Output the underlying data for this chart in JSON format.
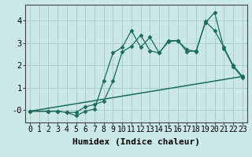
{
  "xlabel": "Humidex (Indice chaleur)",
  "background_color": "#cce8e6",
  "grid_color": "#aacfcd",
  "line_color": "#1a6b5e",
  "xlim": [
    -0.5,
    23.5
  ],
  "ylim": [
    -0.55,
    4.7
  ],
  "xticks": [
    0,
    1,
    2,
    3,
    4,
    5,
    6,
    7,
    8,
    9,
    10,
    11,
    12,
    13,
    14,
    15,
    16,
    17,
    18,
    19,
    20,
    21,
    22,
    23
  ],
  "yticks": [
    0,
    1,
    2,
    3,
    4
  ],
  "ytick_labels": [
    "-0",
    "1",
    "2",
    "3",
    "4"
  ],
  "line1_x": [
    0,
    2,
    3,
    4,
    5,
    6,
    7,
    8,
    9,
    10,
    11,
    12,
    13,
    14,
    15,
    16,
    17,
    18,
    19,
    20,
    21,
    22,
    23
  ],
  "line1_y": [
    -0.05,
    -0.05,
    -0.05,
    -0.1,
    -0.25,
    -0.05,
    0.05,
    1.3,
    2.55,
    2.8,
    3.55,
    2.8,
    3.25,
    2.55,
    3.05,
    3.1,
    2.7,
    2.6,
    3.95,
    3.55,
    2.8,
    2.0,
    1.5
  ],
  "line2_x": [
    0,
    2,
    3,
    4,
    5,
    6,
    7,
    8,
    9,
    10,
    11,
    12,
    13,
    14,
    15,
    16,
    17,
    18,
    19,
    20,
    21,
    22,
    23
  ],
  "line2_y": [
    -0.05,
    -0.05,
    -0.05,
    -0.1,
    -0.1,
    0.15,
    0.25,
    0.4,
    1.3,
    2.6,
    2.85,
    3.35,
    2.65,
    2.55,
    3.1,
    3.1,
    2.6,
    2.65,
    3.9,
    4.35,
    2.75,
    1.95,
    1.45
  ],
  "line3_x": [
    0,
    23
  ],
  "line3_y": [
    -0.05,
    1.5
  ],
  "tick_fontsize": 7,
  "xlabel_fontsize": 8
}
